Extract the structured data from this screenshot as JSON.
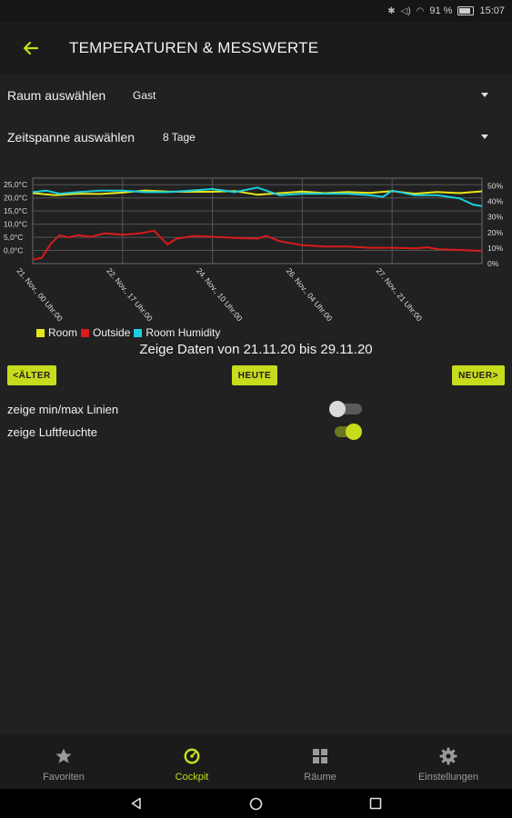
{
  "status": {
    "battery_percent": "91 %",
    "time": "15:07"
  },
  "appbar": {
    "title": "TEMPERATUREN & MESSWERTE"
  },
  "room_select": {
    "label": "Raum auswählen",
    "value": "Gast"
  },
  "timespan_select": {
    "label": "Zeitspanne auswählen",
    "value": "8 Tage"
  },
  "chart_data": {
    "type": "line",
    "y_left_ticks": [
      "25,0°C",
      "20,0°C",
      "15,0°C",
      "10,0°C",
      "5,0°C",
      "0,0°C"
    ],
    "y_right_ticks": [
      "50%",
      "40%",
      "30%",
      "20%",
      "10%",
      "0%"
    ],
    "y_left_range": [
      -5,
      27.5
    ],
    "y_right_range": [
      0,
      55
    ],
    "x_ticks": [
      "21. Nov., 00 Uhr:00",
      "22. Nov., 17 Uhr:00",
      "24. Nov., 10 Uhr:00",
      "26. Nov., 04 Uhr:00",
      "27. Nov., 21 Uhr:00"
    ],
    "x_tick_pos": [
      0.0,
      0.2,
      0.4,
      0.6,
      0.8
    ],
    "legend": [
      {
        "name": "Room",
        "color": "#e6e619"
      },
      {
        "name": "Outside",
        "color": "#d81b1b"
      },
      {
        "name": "Room Humidity",
        "color": "#19d0e0"
      }
    ],
    "series": [
      {
        "name": "Room",
        "axis": "left",
        "color": "#e6e619",
        "x": [
          0,
          0.05,
          0.1,
          0.15,
          0.2,
          0.25,
          0.3,
          0.35,
          0.4,
          0.45,
          0.5,
          0.55,
          0.6,
          0.65,
          0.7,
          0.75,
          0.8,
          0.85,
          0.9,
          0.95,
          1.0
        ],
        "y": [
          21.8,
          21.0,
          21.6,
          21.5,
          22.0,
          22.8,
          22.4,
          22.3,
          22.3,
          22.6,
          21.2,
          21.8,
          22.4,
          21.8,
          22.2,
          21.9,
          22.6,
          21.6,
          22.2,
          21.8,
          22.5
        ]
      },
      {
        "name": "Outside",
        "axis": "left",
        "color": "#d81b1b",
        "x": [
          0,
          0.02,
          0.04,
          0.06,
          0.08,
          0.1,
          0.13,
          0.16,
          0.2,
          0.24,
          0.27,
          0.3,
          0.32,
          0.36,
          0.4,
          0.45,
          0.5,
          0.52,
          0.55,
          0.6,
          0.65,
          0.7,
          0.75,
          0.8,
          0.85,
          0.88,
          0.9,
          0.95,
          1.0
        ],
        "y": [
          -3.5,
          -2.8,
          2.5,
          5.8,
          5.0,
          5.8,
          5.2,
          6.5,
          6.0,
          6.5,
          7.5,
          2.3,
          4.5,
          5.5,
          5.2,
          4.8,
          4.5,
          5.5,
          3.5,
          2.0,
          1.5,
          1.5,
          1.0,
          1.0,
          0.8,
          1.2,
          0.5,
          0.2,
          -0.2
        ]
      },
      {
        "name": "Room Humidity",
        "axis": "right",
        "color": "#19d0e0",
        "x": [
          0,
          0.03,
          0.06,
          0.1,
          0.15,
          0.2,
          0.25,
          0.3,
          0.35,
          0.4,
          0.45,
          0.5,
          0.55,
          0.6,
          0.65,
          0.7,
          0.75,
          0.78,
          0.8,
          0.85,
          0.9,
          0.95,
          0.98,
          1.0
        ],
        "y": [
          46,
          47,
          45,
          46,
          47,
          47,
          46,
          46,
          47,
          48,
          46,
          49,
          44,
          45,
          45,
          45,
          44,
          43,
          47,
          44,
          44,
          42,
          38,
          37
        ]
      }
    ]
  },
  "range_text": "Zeige Daten von 21.11.20 bis 29.11.20",
  "buttons": {
    "older": "<ÄLTER",
    "today": "HEUTE",
    "newer": "NEUER>"
  },
  "toggles": {
    "minmax": {
      "label": "zeige min/max Linien",
      "on": false
    },
    "humidity": {
      "label": "zeige Luftfeuchte",
      "on": true
    }
  },
  "bottom_nav": [
    {
      "label": "Favoriten",
      "icon": "star-icon"
    },
    {
      "label": "Cockpit",
      "icon": "gauge-icon",
      "active": true
    },
    {
      "label": "Räume",
      "icon": "grid-icon"
    },
    {
      "label": "Einstellungen",
      "icon": "gear-icon"
    }
  ],
  "colors": {
    "accent": "#c6dc1d",
    "background": "#212121"
  }
}
